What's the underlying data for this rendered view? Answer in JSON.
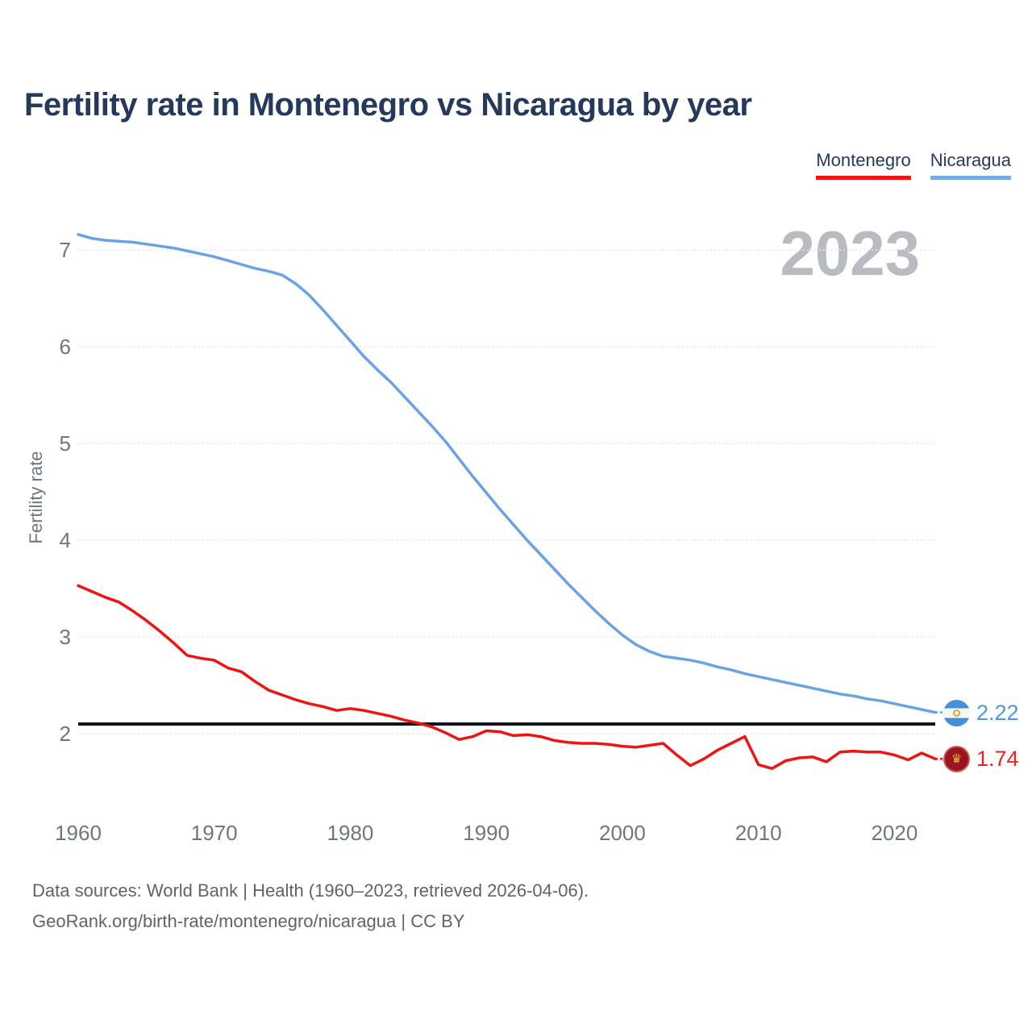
{
  "header": {
    "title": "Fertility rate in Montenegro vs Nicaragua by year"
  },
  "legend": {
    "items": [
      {
        "label": "Montenegro",
        "color": "#f01414"
      },
      {
        "label": "Nicaragua",
        "color": "#74abe0"
      }
    ]
  },
  "watermark": {
    "text": "2023",
    "color": "#b8bcc1"
  },
  "footer": {
    "line1": "Data sources: World Bank | Health (1960–2023, retrieved 2026-04-06).",
    "line2": "GeoRank.org/birth-rate/montenegro/nicaragua | CC BY"
  },
  "chart_data": {
    "type": "line",
    "title": "Fertility rate in Montenegro vs Nicaragua by year",
    "xlabel": "",
    "ylabel": "Fertility rate",
    "x": [
      1960,
      1961,
      1962,
      1963,
      1964,
      1965,
      1966,
      1967,
      1968,
      1969,
      1970,
      1971,
      1972,
      1973,
      1974,
      1975,
      1976,
      1977,
      1978,
      1979,
      1980,
      1981,
      1982,
      1983,
      1984,
      1985,
      1986,
      1987,
      1988,
      1989,
      1990,
      1991,
      1992,
      1993,
      1994,
      1995,
      1996,
      1997,
      1998,
      1999,
      2000,
      2001,
      2002,
      2003,
      2004,
      2005,
      2006,
      2007,
      2008,
      2009,
      2010,
      2011,
      2012,
      2013,
      2014,
      2015,
      2016,
      2017,
      2018,
      2019,
      2020,
      2021,
      2022,
      2023
    ],
    "series": [
      {
        "name": "Montenegro",
        "color": "#ee1414",
        "values": [
          3.53,
          3.47,
          3.41,
          3.36,
          3.27,
          3.17,
          3.06,
          2.94,
          2.81,
          2.78,
          2.76,
          2.68,
          2.64,
          2.54,
          2.45,
          2.4,
          2.35,
          2.31,
          2.28,
          2.24,
          2.26,
          2.24,
          2.21,
          2.18,
          2.14,
          2.11,
          2.07,
          2.01,
          1.94,
          1.97,
          2.03,
          2.02,
          1.98,
          1.99,
          1.97,
          1.93,
          1.91,
          1.9,
          1.9,
          1.89,
          1.87,
          1.86,
          1.88,
          1.9,
          1.78,
          1.67,
          1.74,
          1.83,
          1.9,
          1.97,
          1.68,
          1.64,
          1.72,
          1.75,
          1.76,
          1.71,
          1.81,
          1.82,
          1.81,
          1.81,
          1.78,
          1.73,
          1.8,
          1.74
        ]
      },
      {
        "name": "Nicaragua",
        "color": "#6ba3e2",
        "values": [
          7.16,
          7.12,
          7.1,
          7.09,
          7.08,
          7.06,
          7.04,
          7.02,
          6.99,
          6.96,
          6.93,
          6.89,
          6.85,
          6.81,
          6.78,
          6.74,
          6.65,
          6.53,
          6.38,
          6.22,
          6.06,
          5.9,
          5.76,
          5.63,
          5.48,
          5.33,
          5.18,
          5.02,
          4.84,
          4.66,
          4.49,
          4.32,
          4.16,
          4.0,
          3.85,
          3.7,
          3.55,
          3.41,
          3.27,
          3.14,
          3.02,
          2.92,
          2.85,
          2.8,
          2.78,
          2.76,
          2.73,
          2.69,
          2.66,
          2.62,
          2.59,
          2.56,
          2.53,
          2.5,
          2.47,
          2.44,
          2.41,
          2.39,
          2.36,
          2.34,
          2.31,
          2.28,
          2.25,
          2.22
        ]
      }
    ],
    "reference_line": {
      "value": 2.1,
      "color": "#10141b"
    },
    "y_ticks": [
      2,
      3,
      4,
      5,
      6,
      7
    ],
    "x_ticks": [
      1960,
      1970,
      1980,
      1990,
      2000,
      2010,
      2020
    ],
    "ylim": [
      1.5,
      7.3
    ],
    "grid": "horizontal-dotted",
    "legend_position": "top-right",
    "end_labels": [
      {
        "series": "Nicaragua",
        "value": "2.22",
        "text_color": "#4f97dd"
      },
      {
        "series": "Montenegro",
        "value": "1.74",
        "text_color": "#ee2222"
      }
    ],
    "axis_text_color": "#6e7681",
    "gridline_color": "#e5e7e9"
  }
}
